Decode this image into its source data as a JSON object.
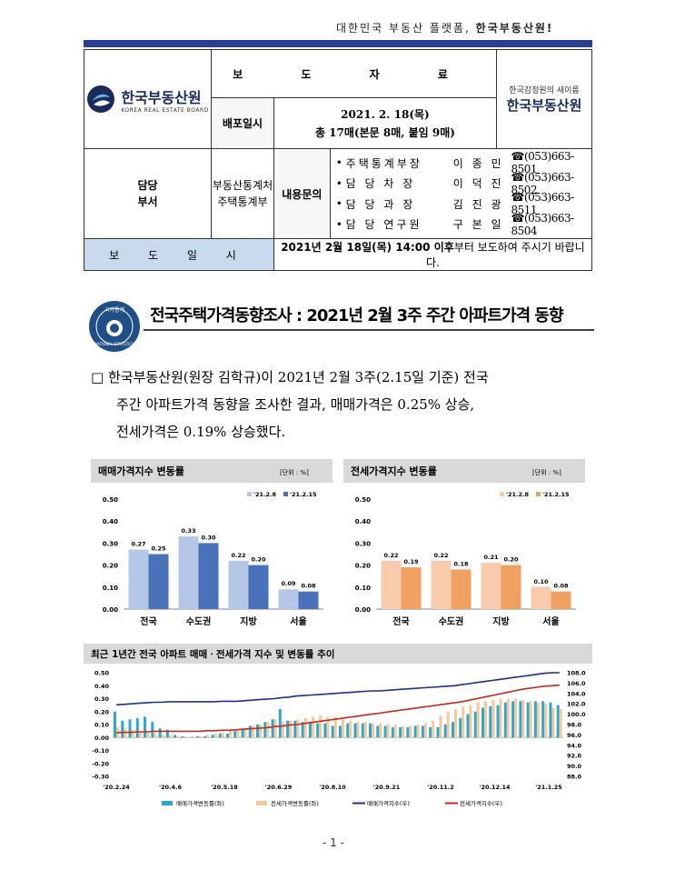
{
  "slogan": {
    "prefix": "대한민국 부동산 플랫폼, ",
    "brand": "한국부동산원!"
  },
  "header": {
    "logo_name": "한국부동산원",
    "logo_eng": "KOREA REAL ESTATE BOARD",
    "title": "보 도 자 료",
    "new_name_small": "한국감정원의 새이름",
    "new_name_big": "한국부동산원",
    "distribution_label": "배포일시",
    "distribution_date": "2021. 2. 18(목)",
    "distribution_pages": "총 17매(본문 8매, 붙임 9매)",
    "dept_label_1": "담당",
    "dept_label_2": "부서",
    "dept_name_1": "부동산통계처",
    "dept_name_2": "주택통계부",
    "inquiry_label": "내용문의",
    "contacts": [
      {
        "role": "주택통계부장",
        "name": "이 종 민",
        "phone": "☎(053)663-8501"
      },
      {
        "role": "담 당 차 장",
        "name": "이 덕 진",
        "phone": "☎(053)663-8502"
      },
      {
        "role": "담 당 과 장",
        "name": "김 진 광",
        "phone": "☎(053)663-8511"
      },
      {
        "role": "담 당 연구원",
        "name": "구 본 일",
        "phone": "☎(053)663-8504"
      }
    ],
    "release_label": "보 도 일 시",
    "release_bold": "2021년 2월 18일(목) 14:00 이후",
    "release_rest": "부터 보도하여 주시기 바랍니다."
  },
  "seal_text": "국가통계",
  "seal_eng": "NATIONAL STATISTICS",
  "headline": "전국주택가격동향조사 : 2021년 2월 3주 주간 아파트가격 동향",
  "paragraph": {
    "bullet": "□",
    "line1": "한국부동산원(원장 김학규)이 2021년 2월 3주(2.15일 기준) 전국",
    "line2": "주간 아파트가격 동향을 조사한 결과, 매매가격은 0.25% 상승,",
    "line3": "전세가격은 0.19% 상승했다."
  },
  "chart_data": [
    {
      "type": "bar",
      "title": "매매가격지수 변동률",
      "unit": "[단위 : %]",
      "categories": [
        "전국",
        "수도권",
        "지방",
        "서울"
      ],
      "series": [
        {
          "name": "'21.2.8",
          "values": [
            0.27,
            0.33,
            0.22,
            0.09
          ],
          "color": "#b4c7e7"
        },
        {
          "name": "'21.2.15",
          "values": [
            0.25,
            0.3,
            0.2,
            0.08
          ],
          "color": "#4a72b8"
        }
      ],
      "ylim": [
        0,
        0.5
      ],
      "yticks": [
        "0.00",
        "0.10",
        "0.20",
        "0.30",
        "0.40",
        "0.50"
      ]
    },
    {
      "type": "bar",
      "title": "전세가격지수 변동률",
      "unit": "[단위 : %]",
      "categories": [
        "전국",
        "수도권",
        "지방",
        "서울"
      ],
      "series": [
        {
          "name": "'21.2.8",
          "values": [
            0.22,
            0.22,
            0.21,
            0.1
          ],
          "color": "#f8cbad"
        },
        {
          "name": "'21.2.15",
          "values": [
            0.19,
            0.18,
            0.2,
            0.08
          ],
          "color": "#f0a060"
        }
      ],
      "ylim": [
        0,
        0.5
      ],
      "yticks": [
        "0.00",
        "0.10",
        "0.20",
        "0.30",
        "0.40",
        "0.50"
      ]
    },
    {
      "type": "bar+line",
      "title": "최근 1년간 전국 아파트 매매ㆍ전세가격 지수 및 변동률 추이",
      "x_labels": [
        "'20.2.24",
        "'20.4.6",
        "'20.5.18",
        "'20.6.29",
        "'20.8.10",
        "'20.9.21",
        "'20.11.2",
        "'20.12.14",
        "'21.1.25"
      ],
      "left_ylim": [
        -0.3,
        0.5
      ],
      "left_yticks": [
        "-0.30",
        "-0.20",
        "-0.10",
        "0.00",
        "0.10",
        "0.20",
        "0.30",
        "0.40",
        "0.50"
      ],
      "right_ylim": [
        88,
        108
      ],
      "right_yticks": [
        "88.0",
        "90.0",
        "92.0",
        "94.0",
        "96.0",
        "98.0",
        "100.0",
        "102.0",
        "104.0",
        "106.0",
        "108.0"
      ],
      "series": [
        {
          "name": "매매가격변동률(좌)",
          "axis": "left",
          "kind": "bar",
          "color": "#2ba8cf",
          "values": [
            0.2,
            0.13,
            0.14,
            0.15,
            0.16,
            0.12,
            0.07,
            0.06,
            0.02,
            0.01,
            0.0,
            0.01,
            0.01,
            0.02,
            0.03,
            0.03,
            0.05,
            0.07,
            0.09,
            0.1,
            0.12,
            0.14,
            0.22,
            0.13,
            0.13,
            0.12,
            0.12,
            0.11,
            0.11,
            0.09,
            0.09,
            0.11,
            0.11,
            0.11,
            0.11,
            0.09,
            0.09,
            0.08,
            0.08,
            0.08,
            0.09,
            0.09,
            0.08,
            0.08,
            0.1,
            0.12,
            0.15,
            0.18,
            0.2,
            0.23,
            0.24,
            0.25,
            0.27,
            0.28,
            0.28,
            0.27,
            0.28,
            0.28,
            0.27,
            0.25
          ]
        },
        {
          "name": "전세가격변동률(좌)",
          "axis": "left",
          "kind": "bar",
          "color": "#f8c89a",
          "values": [
            0.08,
            0.07,
            0.06,
            0.05,
            0.04,
            0.03,
            0.02,
            0.02,
            0.01,
            0.01,
            0.01,
            0.01,
            0.02,
            0.03,
            0.04,
            0.05,
            0.06,
            0.07,
            0.09,
            0.1,
            0.12,
            0.14,
            0.12,
            0.13,
            0.14,
            0.15,
            0.16,
            0.17,
            0.16,
            0.16,
            0.14,
            0.13,
            0.12,
            0.12,
            0.11,
            0.11,
            0.1,
            0.1,
            0.09,
            0.09,
            0.1,
            0.11,
            0.13,
            0.17,
            0.2,
            0.22,
            0.24,
            0.25,
            0.27,
            0.28,
            0.29,
            0.3,
            0.3,
            0.3,
            0.29,
            0.28,
            0.27,
            0.26,
            0.23,
            0.22
          ]
        },
        {
          "name": "매매가격지수(우)",
          "axis": "right",
          "kind": "line",
          "color": "#1f2f8f",
          "values": [
            101.8,
            101.9,
            102.0,
            102.1,
            102.2,
            102.3,
            102.3,
            102.4,
            102.4,
            102.4,
            102.4,
            102.4,
            102.4,
            102.4,
            102.5,
            102.5,
            102.5,
            102.6,
            102.7,
            102.8,
            102.9,
            103.0,
            103.2,
            103.3,
            103.5,
            103.6,
            103.7,
            103.8,
            103.9,
            104.0,
            104.1,
            104.2,
            104.3,
            104.4,
            104.5,
            104.5,
            104.6,
            104.7,
            104.8,
            104.9,
            105.0,
            105.1,
            105.2,
            105.3,
            105.4,
            105.5,
            105.7,
            105.9,
            106.1,
            106.3,
            106.5,
            106.7,
            106.9,
            107.1,
            107.3,
            107.5,
            107.7,
            107.9,
            108.0,
            108.0
          ]
        },
        {
          "name": "전세가격지수(우)",
          "axis": "right",
          "kind": "line",
          "color": "#c8281e",
          "values": [
            96.4,
            96.5,
            96.5,
            96.6,
            96.6,
            96.7,
            96.7,
            96.7,
            96.7,
            96.7,
            96.7,
            96.7,
            96.8,
            96.8,
            96.9,
            96.9,
            97.0,
            97.1,
            97.2,
            97.3,
            97.4,
            97.6,
            97.7,
            97.9,
            98.0,
            98.2,
            98.4,
            98.6,
            98.8,
            99.0,
            99.2,
            99.4,
            99.6,
            99.8,
            100.0,
            100.2,
            100.4,
            100.6,
            100.8,
            101.0,
            101.2,
            101.4,
            101.6,
            101.8,
            102.0,
            102.2,
            102.4,
            102.7,
            103.0,
            103.3,
            103.6,
            103.9,
            104.2,
            104.5,
            104.8,
            105.0,
            105.2,
            105.4,
            105.5,
            105.6
          ]
        }
      ]
    }
  ],
  "page_number": "- 1 -"
}
